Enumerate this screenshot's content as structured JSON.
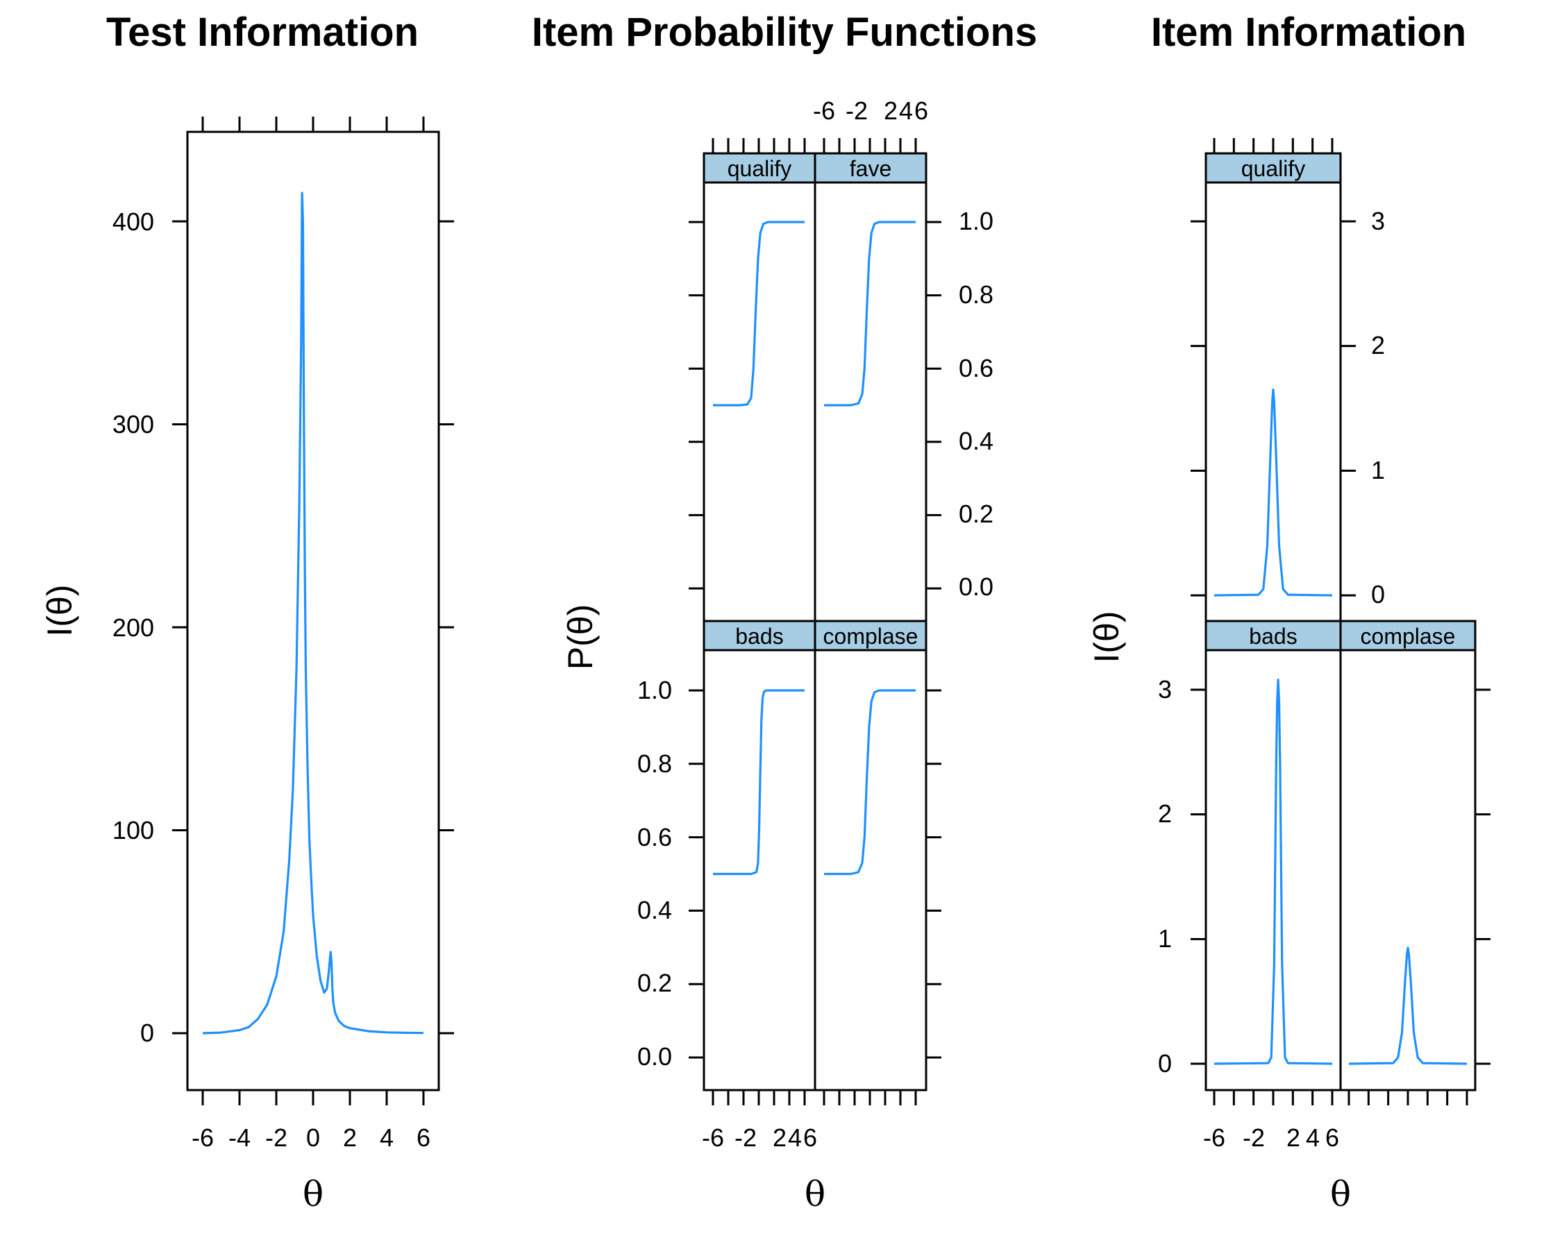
{
  "chart_data": [
    {
      "type": "line",
      "title": "Test Information",
      "xlabel": "θ",
      "ylabel": "I(θ)",
      "xlim": [
        -6,
        6
      ],
      "ylim": [
        -28,
        444
      ],
      "xticks": [
        "-6",
        "-4",
        "-2",
        "0",
        "2",
        "4",
        "6"
      ],
      "yticks": [
        "0",
        "100",
        "200",
        "300",
        "400"
      ],
      "series": [
        {
          "x": [
            -6,
            -5,
            -4,
            -3.5,
            -3,
            -2.5,
            -2,
            -1.6,
            -1.3,
            -1.1,
            -0.9,
            -0.75,
            -0.65,
            -0.6,
            -0.55,
            -0.5,
            -0.45,
            -0.4,
            -0.3,
            -0.2,
            -0.1,
            0,
            0.2,
            0.4,
            0.6,
            0.75,
            0.85,
            0.95,
            1.0,
            1.05,
            1.1,
            1.2,
            1.4,
            1.7,
            2,
            3,
            4,
            5,
            6
          ],
          "y": [
            0,
            0.3,
            1.5,
            3,
            7,
            14,
            28,
            50,
            85,
            120,
            180,
            260,
            340,
            414,
            400,
            300,
            230,
            180,
            130,
            95,
            75,
            58,
            38,
            26,
            20,
            22,
            30,
            40,
            35,
            22,
            15,
            10,
            6,
            3.5,
            2.5,
            1,
            0.4,
            0.2,
            0.1
          ]
        }
      ]
    },
    {
      "type": "line",
      "title": "Item Probability Functions",
      "xlabel": "θ",
      "ylabel": "P(θ)",
      "xlim": [
        -6.5,
        7.5
      ],
      "ylim": [
        -0.1,
        1.1
      ],
      "xticks": [
        "-6",
        "-2",
        "2",
        "4",
        "6"
      ],
      "yticks": [
        "0.0",
        "0.2",
        "0.4",
        "0.6",
        "0.8",
        "1.0"
      ],
      "panels": [
        {
          "name": "qualify",
          "x": [
            -6,
            -2.5,
            -1.5,
            -1.0,
            -0.7,
            -0.4,
            -0.1,
            0.2,
            0.6,
            1.2,
            6
          ],
          "y": [
            0.5,
            0.5,
            0.502,
            0.52,
            0.6,
            0.76,
            0.9,
            0.97,
            0.995,
            1.0,
            1.0
          ]
        },
        {
          "name": "fave",
          "x": [
            -6,
            -2.5,
            -1.5,
            -1.0,
            -0.7,
            -0.4,
            -0.1,
            0.2,
            0.6,
            1.2,
            6
          ],
          "y": [
            0.5,
            0.5,
            0.505,
            0.53,
            0.6,
            0.76,
            0.9,
            0.97,
            0.995,
            1.0,
            1.0
          ]
        },
        {
          "name": "bads",
          "x": [
            -6,
            -1,
            -0.3,
            -0.1,
            0.05,
            0.2,
            0.35,
            0.5,
            0.7,
            1.0,
            6
          ],
          "y": [
            0.5,
            0.5,
            0.505,
            0.53,
            0.62,
            0.78,
            0.92,
            0.98,
            0.997,
            1.0,
            1.0
          ]
        },
        {
          "name": "complase",
          "x": [
            -6,
            -2.5,
            -1.5,
            -1.0,
            -0.7,
            -0.4,
            -0.1,
            0.2,
            0.6,
            1.2,
            6
          ],
          "y": [
            0.5,
            0.5,
            0.505,
            0.53,
            0.6,
            0.76,
            0.9,
            0.97,
            0.995,
            1.0,
            1.0
          ]
        }
      ]
    },
    {
      "type": "line",
      "title": "Item Information",
      "xlabel": "θ",
      "ylabel": "I(θ)",
      "xlim": [
        -6.5,
        7.5
      ],
      "ylim": [
        -0.2,
        3.5
      ],
      "xticks": [
        "-6",
        "-2",
        "2",
        "4",
        "6"
      ],
      "yticks": [
        "0",
        "1",
        "2",
        "3"
      ],
      "panels": [
        {
          "name": "qualify",
          "x": [
            -6,
            -1.5,
            -1.0,
            -0.6,
            -0.3,
            -0.1,
            0.0,
            0.1,
            0.3,
            0.6,
            1.0,
            1.5,
            6
          ],
          "y": [
            0,
            0.005,
            0.05,
            0.4,
            1.1,
            1.55,
            1.65,
            1.55,
            1.1,
            0.4,
            0.05,
            0.005,
            0
          ]
        },
        {
          "name": "bads",
          "x": [
            -6,
            -0.5,
            -0.2,
            0.1,
            0.3,
            0.4,
            0.5,
            0.6,
            0.7,
            0.9,
            1.2,
            1.5,
            6
          ],
          "y": [
            0,
            0.005,
            0.05,
            0.8,
            2.4,
            2.9,
            3.08,
            2.9,
            2.4,
            0.8,
            0.05,
            0.005,
            0
          ]
        },
        {
          "name": "complase",
          "x": [
            -6,
            -1.5,
            -1.0,
            -0.6,
            -0.3,
            -0.1,
            0.0,
            0.1,
            0.3,
            0.6,
            1.0,
            1.5,
            6
          ],
          "y": [
            0,
            0.005,
            0.05,
            0.25,
            0.65,
            0.88,
            0.93,
            0.88,
            0.65,
            0.25,
            0.05,
            0.005,
            0
          ]
        }
      ]
    }
  ]
}
